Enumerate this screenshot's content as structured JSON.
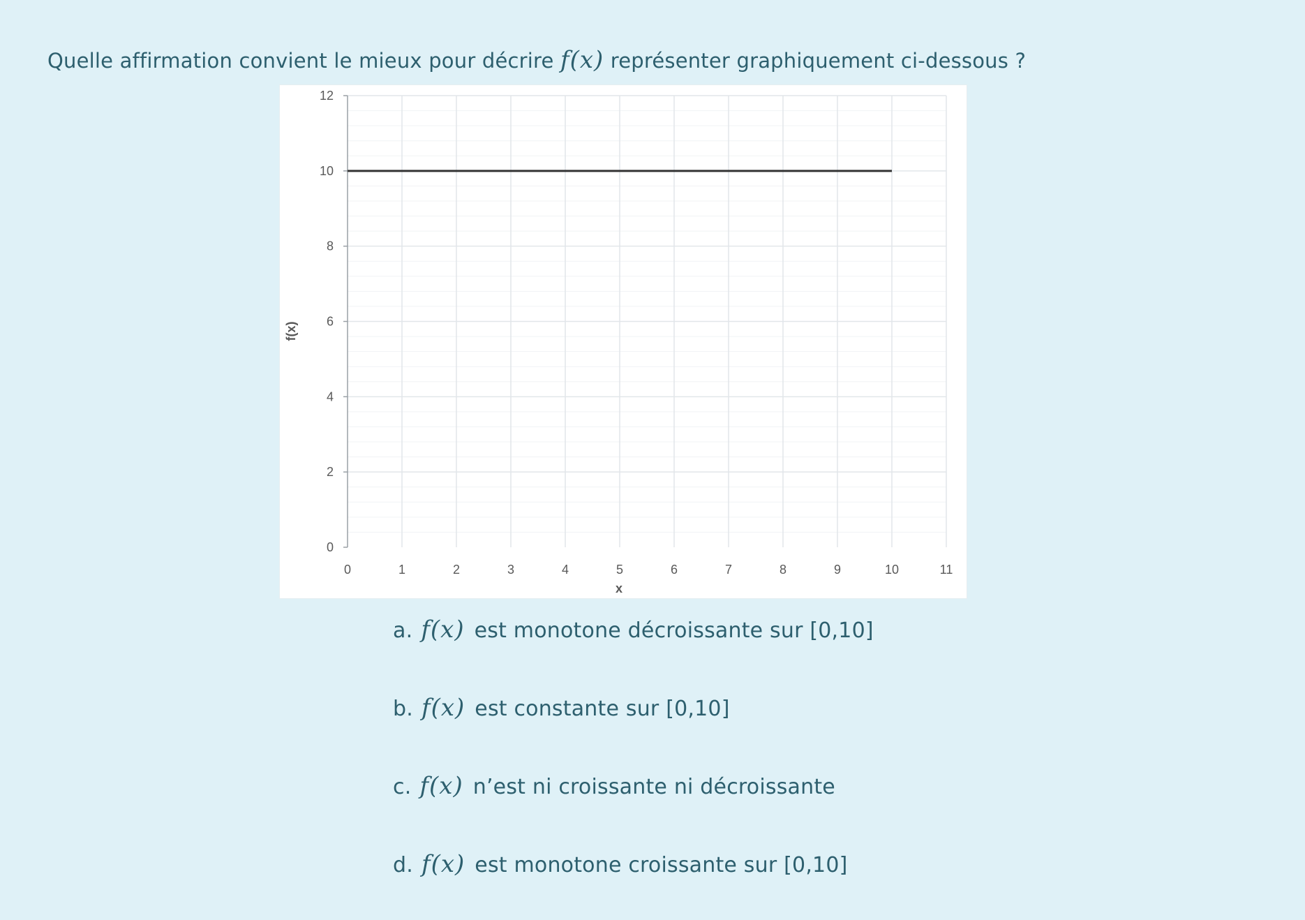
{
  "question": {
    "text_before": "Quelle affirmation convient le mieux pour décrire",
    "math": "f(x)",
    "text_after": "représenter graphiquement ci-dessous ?"
  },
  "chart_data": {
    "type": "line",
    "xlabel": "x",
    "ylabel": "f(x)",
    "xlim": [
      0,
      11
    ],
    "ylim": [
      0,
      12
    ],
    "x_ticks": [
      "0",
      "1",
      "2",
      "3",
      "4",
      "5",
      "6",
      "7",
      "8",
      "9",
      "10",
      "11"
    ],
    "y_ticks": [
      "0",
      "2",
      "4",
      "6",
      "8",
      "10",
      "12"
    ],
    "grid": true,
    "series": [
      {
        "x": [
          0,
          10
        ],
        "y": [
          10,
          10
        ],
        "color": "#333333"
      }
    ]
  },
  "options": [
    {
      "letter": "a.",
      "math": "f(x)",
      "text": "est monotone décroissante sur [0,10]"
    },
    {
      "letter": "b.",
      "math": "f(x)",
      "text": "est constante sur [0,10]"
    },
    {
      "letter": "c.",
      "math": "f(x)",
      "text": "n’est ni croissante ni décroissante"
    },
    {
      "letter": "d.",
      "math": "f(x)",
      "text": "est monotone croissante sur [0,10]"
    }
  ],
  "colors": {
    "background": "#dff1f7",
    "text": "#2d5f6e",
    "line": "#333333",
    "grid": "#e2e6ea"
  }
}
